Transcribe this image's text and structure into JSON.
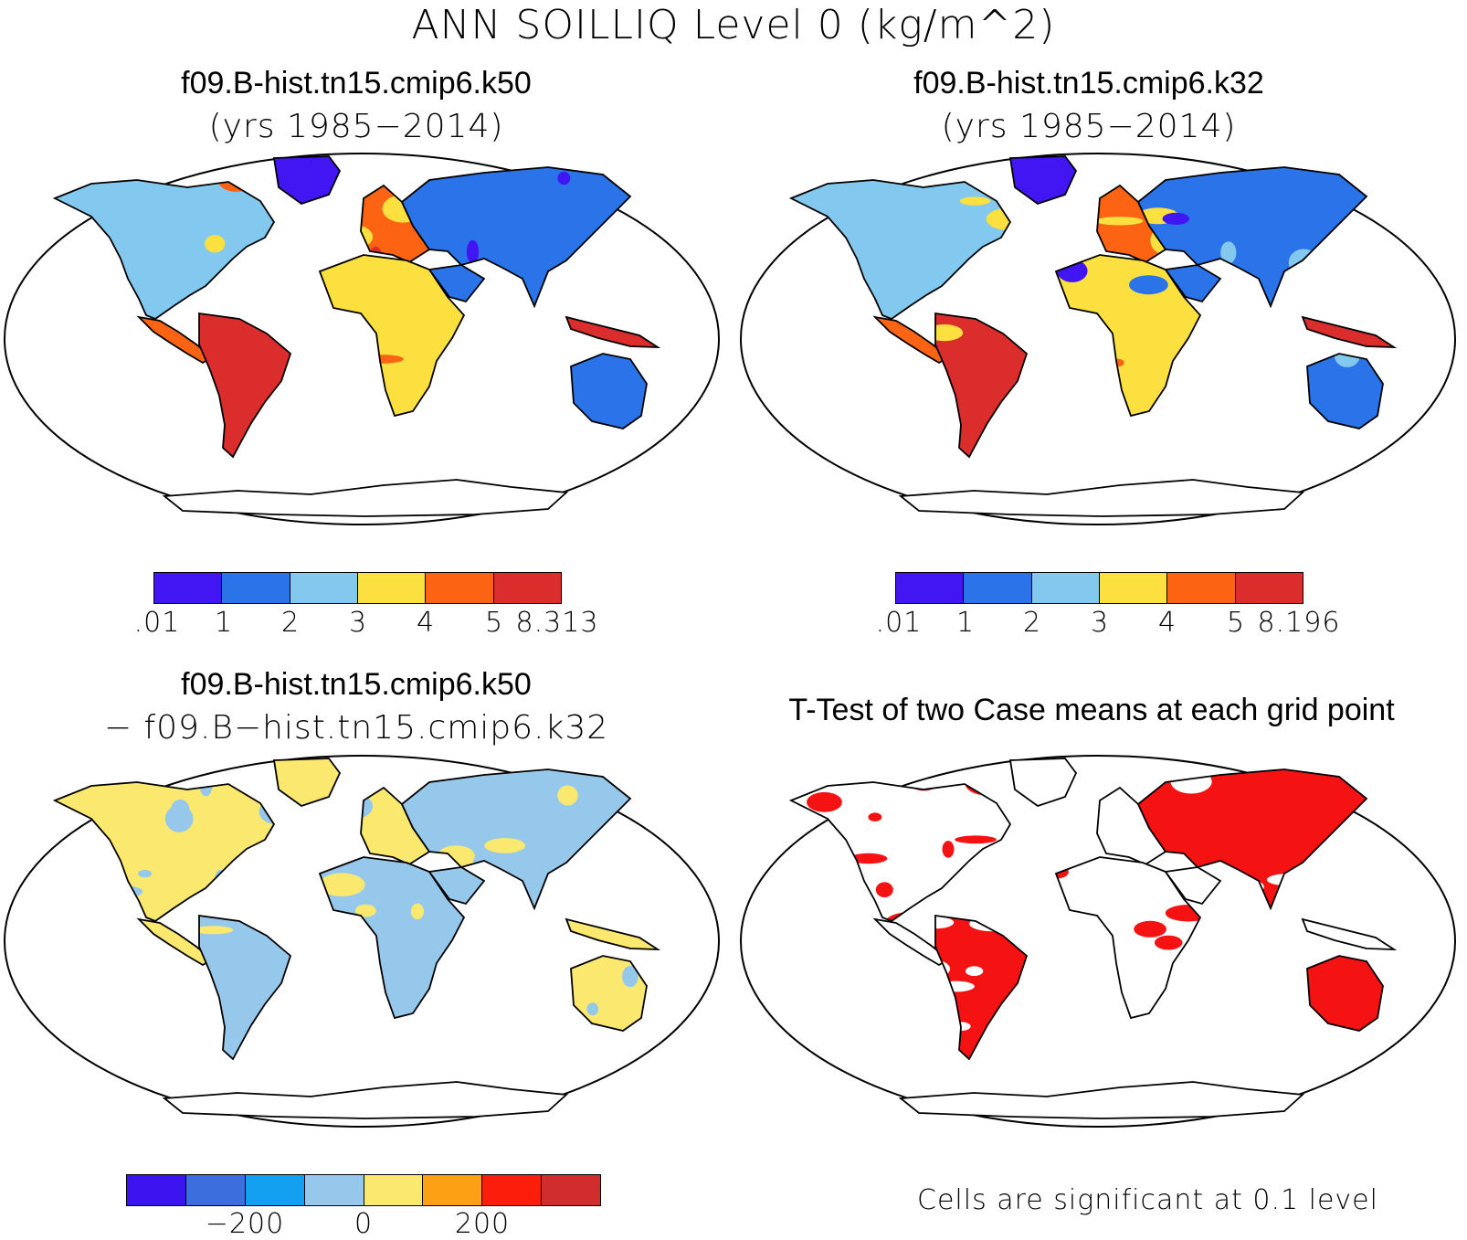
{
  "title": "ANN SOILLIQ Level 0 (kg/m^2)",
  "panels": {
    "top_left": {
      "title": "f09.B-hist.tn15.cmip6.k50",
      "subtitle": "(yrs 1985−2014)"
    },
    "top_right": {
      "title": "f09.B-hist.tn15.cmip6.k32",
      "subtitle": "(yrs 1985−2014)"
    },
    "bottom_left": {
      "title": "f09.B-hist.tn15.cmip6.k50",
      "subtitle": "− f09.B−hist.tn15.cmip6.k32"
    },
    "bottom_right": {
      "title": "T-Test of two Case means at each grid point",
      "note": "Cells are significant at 0.1 level"
    }
  },
  "colorbars": {
    "top_left": {
      "colors": [
        "#4216f2",
        "#2a73e8",
        "#82c8ef",
        "#fce040",
        "#fc6414",
        "#dc2d2d"
      ],
      "labels": [
        ".01",
        "1",
        "2",
        "3",
        "4",
        "5",
        "8.313"
      ]
    },
    "top_right": {
      "colors": [
        "#4216f2",
        "#2a73e8",
        "#82c8ef",
        "#fce040",
        "#fc6414",
        "#dc2d2d"
      ],
      "labels": [
        ".01",
        "1",
        "2",
        "3",
        "4",
        "5",
        "8.196"
      ]
    },
    "bottom_left": {
      "colors": [
        "#3c14f0",
        "#3d6ede",
        "#14a0f0",
        "#96c8ec",
        "#fbe86e",
        "#fca014",
        "#fc1e0a",
        "#d22d2d"
      ],
      "labels": [
        "−200",
        "0",
        "200"
      ]
    }
  },
  "map_colors": {
    "ocean": "#ffffff",
    "coast": "#000000",
    "ttest_significant": "#f51212"
  }
}
